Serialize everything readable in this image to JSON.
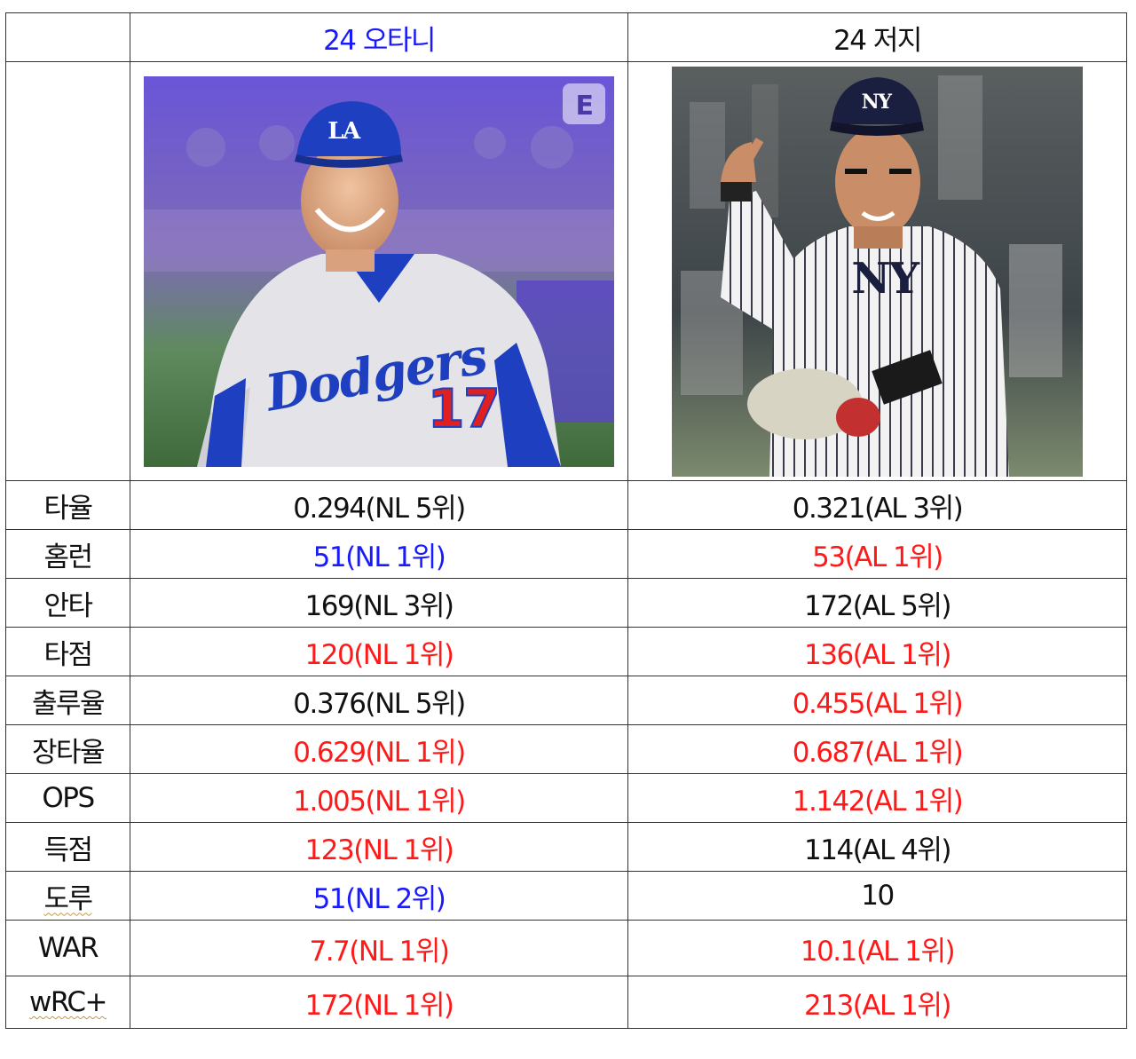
{
  "header": {
    "player1": "24  오타니",
    "player2": "24  저지"
  },
  "photos": {
    "player1": {
      "cap_logo": "LA",
      "jersey_text": "Dodgers",
      "jersey_number": "17",
      "badge": "E"
    },
    "player2": {
      "cap_logo": "NY",
      "jersey_logo": "NY"
    }
  },
  "colors": {
    "black": "#111111",
    "blue": "#1a1aff",
    "red": "#ff1a1a"
  },
  "rows": [
    {
      "label": "타율",
      "p1": "0.294(NL  5위)",
      "p1_color": "black",
      "p2": "0.321(AL  3위)",
      "p2_color": "black"
    },
    {
      "label": "홈런",
      "p1": "51(NL  1위)",
      "p1_color": "blue",
      "p2": "53(AL  1위)",
      "p2_color": "red"
    },
    {
      "label": "안타",
      "p1": "169(NL  3위)",
      "p1_color": "black",
      "p2": "172(AL  5위)",
      "p2_color": "black"
    },
    {
      "label": "타점",
      "p1": "120(NL  1위)",
      "p1_color": "red",
      "p2": "136(AL  1위)",
      "p2_color": "red"
    },
    {
      "label": "출루율",
      "p1": "0.376(NL  5위)",
      "p1_color": "black",
      "p2": "0.455(AL  1위)",
      "p2_color": "red"
    },
    {
      "label": "장타율",
      "p1": "0.629(NL  1위)",
      "p1_color": "red",
      "p2": "0.687(AL  1위)",
      "p2_color": "red"
    },
    {
      "label": "OPS",
      "p1": "1.005(NL  1위)",
      "p1_color": "red",
      "p2": "1.142(AL  1위)",
      "p2_color": "red"
    },
    {
      "label": "득점",
      "p1": "123(NL  1위)",
      "p1_color": "red",
      "p2": "114(AL  4위)",
      "p2_color": "black"
    },
    {
      "label": "도루",
      "p1": "51(NL  2위)",
      "p1_color": "blue",
      "p2": "10",
      "p2_color": "black"
    },
    {
      "label": "WAR",
      "p1": "7.7(NL  1위)",
      "p1_color": "red",
      "p2": "10.1(AL  1위)",
      "p2_color": "red"
    },
    {
      "label": "wRC+",
      "p1": "172(NL  1위)",
      "p1_color": "red",
      "p2": "213(AL  1위)",
      "p2_color": "red"
    }
  ]
}
